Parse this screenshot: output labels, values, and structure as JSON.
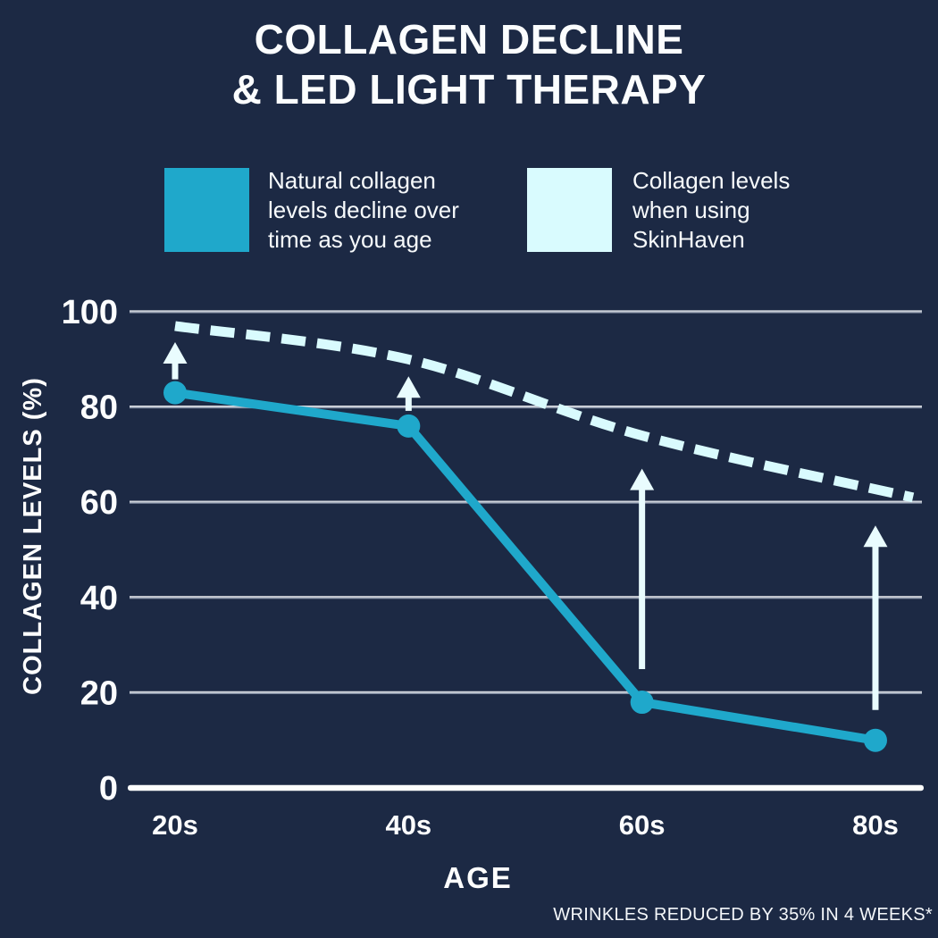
{
  "title": {
    "line1": "COLLAGEN DECLINE",
    "line2": "& LED LIGHT THERAPY"
  },
  "legend": [
    {
      "color": "#1fa8cb",
      "lines": [
        "Natural collagen",
        "levels decline over",
        "time as you age"
      ]
    },
    {
      "color": "#d9fbfe",
      "lines": [
        "Collagen levels",
        "when using",
        "SkinHaven"
      ]
    }
  ],
  "footnote": "WRINKLES REDUCED BY 35% IN 4 WEEKS*",
  "chart_data": {
    "type": "line",
    "categories": [
      "20s",
      "40s",
      "60s",
      "80s"
    ],
    "series": [
      {
        "name": "Natural collagen levels decline over time as you age",
        "style": "solid",
        "color": "#1fa8cb",
        "values": [
          83,
          76,
          18,
          10
        ]
      },
      {
        "name": "Collagen levels when using SkinHaven",
        "style": "dashed",
        "color": "#d9fbfe",
        "values": [
          97,
          90,
          74,
          61
        ]
      }
    ],
    "xlabel": "AGE",
    "ylabel": "COLLAGEN LEVELS (%)",
    "yticks": [
      0,
      20,
      40,
      60,
      80,
      100
    ],
    "ylim": [
      0,
      100
    ],
    "grid": true,
    "legend_position": "top",
    "annotations": "up arrows from natural line to SkinHaven line at each age",
    "arrow_color": "#e9fcfe"
  }
}
